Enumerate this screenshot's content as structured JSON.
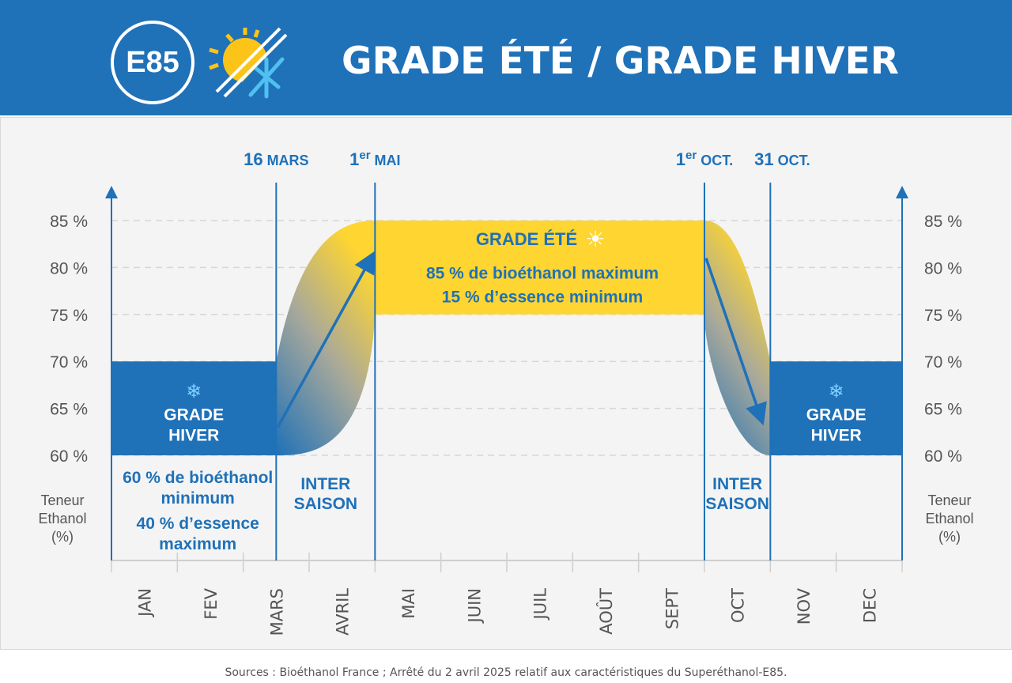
{
  "header": {
    "logo_text": "E85",
    "title": "GRADE ÉTÉ / GRADE HIVER",
    "icon": "sun-snowflake-icon",
    "bg_color": "#1f71b8"
  },
  "chart_data": {
    "type": "range-timeline",
    "ylim": [
      60,
      85
    ],
    "y_ticks": [
      "60 %",
      "65 %",
      "70 %",
      "75 %",
      "80 %",
      "85 %"
    ],
    "y_tick_values": [
      60,
      65,
      70,
      75,
      80,
      85
    ],
    "ylabel": [
      "Teneur",
      "Ethanol",
      "(%)"
    ],
    "x_ticks": [
      "JAN",
      "FEV",
      "MARS",
      "AVRIL",
      "MAI",
      "JUIN",
      "JUIL",
      "AOÛT",
      "SEPT",
      "OCT",
      "NOV",
      "DEC"
    ],
    "markers": [
      {
        "label_num": "16",
        "label_sup": "",
        "label_text": "MARS",
        "month": 2.5
      },
      {
        "label_num": "1",
        "label_sup": "er",
        "label_text": "MAI",
        "month": 4
      },
      {
        "label_num": "1",
        "label_sup": "er",
        "label_text": "OCT.",
        "month": 9
      },
      {
        "label_num": "31",
        "label_sup": "",
        "label_text": "OCT.",
        "month": 10
      }
    ],
    "periods": [
      {
        "name": "GRADE HIVER",
        "start_month": 0,
        "end_month": 2.5,
        "min": 60,
        "max": 70,
        "color": "#1f71b8"
      },
      {
        "name": "GRADE ÉTÉ",
        "start_month": 4,
        "end_month": 9,
        "min": 75,
        "max": 85,
        "color": "#fed531"
      },
      {
        "name": "GRADE HIVER",
        "start_month": 10,
        "end_month": 12,
        "min": 60,
        "max": 70,
        "color": "#1f71b8"
      }
    ],
    "transitions": [
      {
        "label": "INTER SAISON",
        "start_month": 2.5,
        "end_month": 4
      },
      {
        "label": "INTER SAISON",
        "start_month": 9,
        "end_month": 10
      }
    ],
    "annotations": {
      "winter_label": [
        "GRADE",
        "HIVER"
      ],
      "summer_label": "GRADE ÉTÉ",
      "summer_text": [
        "85 % de bioéthanol maximum",
        "15 % d’essence minimum"
      ],
      "winter_text": [
        "60 % de bioéthanol",
        "minimum",
        "40 % d’essence",
        "maximum"
      ],
      "inter": [
        "INTER",
        "SAISON"
      ]
    },
    "grid": "dashed horizontal"
  },
  "footer": {
    "source": "Sources : Bioéthanol France ; Arrêté du 2 avril 2025 relatif aux caractéristiques du Superéthanol-E85."
  }
}
